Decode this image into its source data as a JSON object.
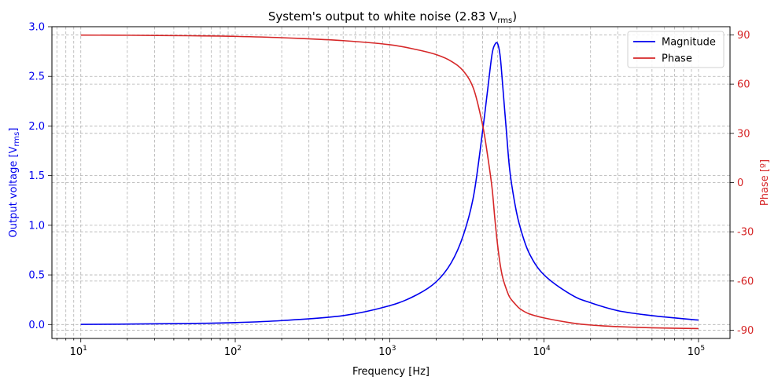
{
  "chart_data": {
    "type": "line",
    "title": "System's output to white noise (2.83 V",
    "title_italic_var": "V",
    "title_sub": "rms",
    "title_close": ")",
    "xlabel": "Frequency [Hz]",
    "ylabel_left": "Output voltage [V",
    "ylabel_left_sub": "rms",
    "ylabel_left_close": "]",
    "ylabel_right": "Phase [º]",
    "xscale": "log",
    "xlim": [
      6.5,
      160000
    ],
    "ylim_left": [
      -0.14,
      3.0
    ],
    "ylim_right": [
      -95,
      95
    ],
    "grid": true,
    "grid_minor": true,
    "legend_position": "upper right",
    "x_ticks": [
      {
        "value": 10,
        "base": "10",
        "exp": "1"
      },
      {
        "value": 100,
        "base": "10",
        "exp": "2"
      },
      {
        "value": 1000,
        "base": "10",
        "exp": "3"
      },
      {
        "value": 10000,
        "base": "10",
        "exp": "4"
      },
      {
        "value": 100000,
        "base": "10",
        "exp": "5"
      }
    ],
    "y_left_ticks": [
      "0.0",
      "0.5",
      "1.0",
      "1.5",
      "2.0",
      "2.5",
      "3.0"
    ],
    "y_left_tick_values": [
      0,
      0.5,
      1.0,
      1.5,
      2.0,
      2.5,
      3.0
    ],
    "y_right_ticks": [
      "-90",
      "-60",
      "-30",
      "0",
      "30",
      "60",
      "90"
    ],
    "y_right_tick_values": [
      -90,
      -60,
      -30,
      0,
      30,
      60,
      90
    ],
    "series": [
      {
        "name": "Magnitude",
        "axis": "left",
        "color": "#0000ee",
        "x": [
          10,
          20,
          50,
          100,
          200,
          500,
          1000,
          1500,
          2000,
          2500,
          3000,
          3500,
          4000,
          4300,
          4600,
          4800,
          5000,
          5200,
          5400,
          5700,
          6000,
          6500,
          7000,
          8000,
          10000,
          15000,
          20000,
          30000,
          50000,
          100000
        ],
        "y": [
          0.002,
          0.005,
          0.011,
          0.02,
          0.04,
          0.09,
          0.19,
          0.3,
          0.43,
          0.62,
          0.9,
          1.3,
          1.95,
          2.35,
          2.72,
          2.82,
          2.83,
          2.7,
          2.4,
          1.95,
          1.55,
          1.2,
          0.98,
          0.72,
          0.5,
          0.3,
          0.22,
          0.14,
          0.09,
          0.045
        ]
      },
      {
        "name": "Phase",
        "axis": "right",
        "color": "#d62728",
        "x": [
          10,
          20,
          50,
          100,
          200,
          500,
          1000,
          1500,
          2000,
          2500,
          3000,
          3500,
          4000,
          4300,
          4600,
          4800,
          5000,
          5200,
          5400,
          5700,
          6000,
          6500,
          7000,
          8000,
          10000,
          15000,
          20000,
          30000,
          50000,
          100000
        ],
        "y": [
          89.9,
          89.8,
          89.5,
          89.1,
          88.3,
          86.5,
          84.0,
          81.0,
          78.0,
          74.0,
          68.0,
          57.0,
          35.0,
          17.0,
          -3.0,
          -22.0,
          -38.0,
          -50.0,
          -58.0,
          -65.0,
          -70.0,
          -74.0,
          -77.0,
          -80.0,
          -82.5,
          -85.5,
          -86.8,
          -87.8,
          -88.5,
          -89.0
        ]
      }
    ],
    "legend": [
      {
        "label": "Magnitude",
        "color": "#0000ee"
      },
      {
        "label": "Phase",
        "color": "#d62728"
      }
    ],
    "colors": {
      "left_axis": "#0000ee",
      "right_axis": "#d62728",
      "grid": "#b0b0b0"
    }
  }
}
